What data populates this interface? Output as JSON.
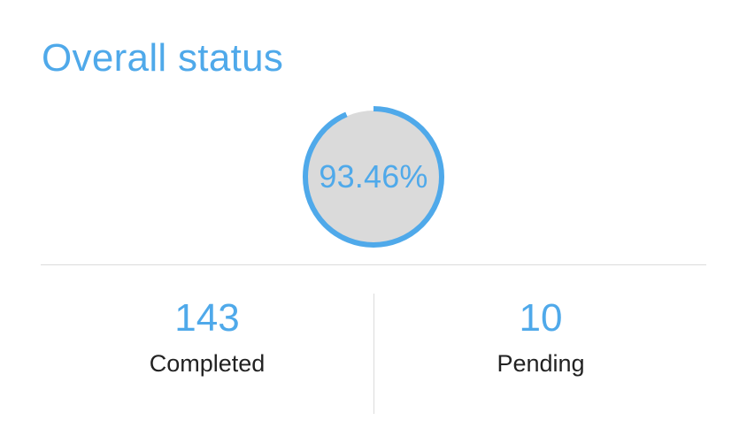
{
  "card": {
    "title": "Overall status"
  },
  "progress": {
    "percent_label": "93.46%",
    "fraction": 0.9346,
    "ring_color": "#4fa9ea",
    "fill_color": "#dadada"
  },
  "stats": [
    {
      "value": "143",
      "label": "Completed"
    },
    {
      "value": "10",
      "label": "Pending"
    }
  ],
  "colors": {
    "accent": "#4fa9ea",
    "text": "#222222",
    "divider": "#dcdcdc"
  }
}
